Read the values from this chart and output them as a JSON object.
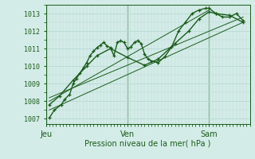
{
  "xlabel": "Pression niveau de la mer( hPa )",
  "background_color": "#d4ece8",
  "grid_color": "#b8d8d4",
  "line_color": "#1a5c1a",
  "axis_color": "#1a5c1a",
  "text_color": "#1a5c1a",
  "ylim": [
    1006.7,
    1013.5
  ],
  "xlim": [
    0,
    120
  ],
  "day_labels": [
    "Jeu",
    "Ven",
    "Sam"
  ],
  "day_positions": [
    0,
    48,
    96
  ],
  "series1_x": [
    2,
    5,
    9,
    11,
    14,
    16,
    18,
    20,
    22,
    24,
    26,
    28,
    30,
    32,
    34,
    36,
    38,
    40,
    42,
    44,
    46,
    48,
    50,
    52,
    54,
    56,
    58,
    60,
    62,
    66,
    70,
    74,
    78,
    82,
    86,
    90,
    94,
    96,
    100,
    104,
    108,
    112,
    116
  ],
  "series1_y": [
    1007.05,
    1007.5,
    1007.8,
    1008.1,
    1008.4,
    1009.0,
    1009.3,
    1009.6,
    1009.9,
    1010.2,
    1010.6,
    1010.85,
    1011.05,
    1011.2,
    1011.35,
    1011.15,
    1011.05,
    1010.6,
    1011.35,
    1011.45,
    1011.35,
    1011.0,
    1011.1,
    1011.35,
    1011.45,
    1011.3,
    1010.7,
    1010.4,
    1010.3,
    1010.2,
    1010.55,
    1011.1,
    1012.0,
    1012.5,
    1013.0,
    1013.2,
    1013.3,
    1013.3,
    1013.0,
    1012.8,
    1012.8,
    1013.0,
    1012.6
  ],
  "series2_x": [
    2,
    8,
    16,
    24,
    30,
    38,
    48,
    58,
    66,
    76,
    84,
    90,
    96,
    100,
    108,
    116
  ],
  "series2_y": [
    1007.8,
    1008.3,
    1009.2,
    1010.0,
    1010.6,
    1011.0,
    1010.5,
    1010.05,
    1010.4,
    1011.3,
    1012.0,
    1012.7,
    1013.1,
    1013.0,
    1012.9,
    1012.5
  ],
  "trend1_x": [
    2,
    116
  ],
  "trend1_y": [
    1007.5,
    1012.5
  ],
  "trend2_x": [
    2,
    116
  ],
  "trend2_y": [
    1008.2,
    1012.8
  ],
  "trend3_x": [
    2,
    96
  ],
  "trend3_y": [
    1008.0,
    1013.2
  ],
  "marker": "+",
  "markersize": 3,
  "linewidth": 1.0,
  "trend_linewidth": 0.7,
  "fontsize_tick": 6,
  "fontsize_xlabel": 7
}
